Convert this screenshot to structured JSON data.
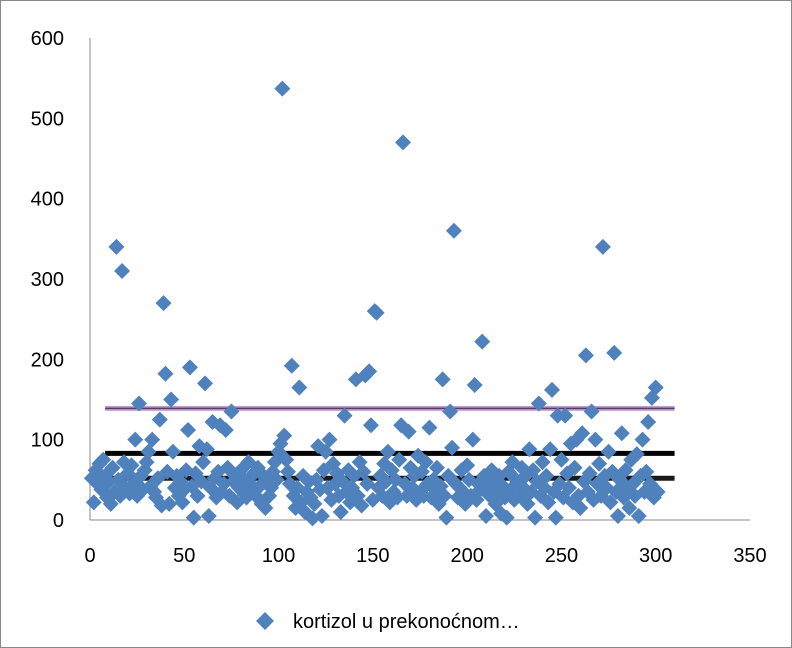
{
  "chart_data": {
    "type": "scatter",
    "title": "",
    "xlabel": "",
    "ylabel": "",
    "xlim": [
      0,
      350
    ],
    "ylim": [
      0,
      600
    ],
    "x_ticks": [
      0,
      50,
      100,
      150,
      200,
      250,
      300,
      350
    ],
    "y_ticks": [
      0,
      100,
      200,
      300,
      400,
      500,
      600
    ],
    "grid": false,
    "legend_position": "bottom",
    "reference_lines": [
      {
        "y": 139,
        "color": "#bf9fd0",
        "x_range": [
          8,
          310
        ]
      },
      {
        "y": 83,
        "color": "#000000",
        "x_range": [
          8,
          310
        ]
      },
      {
        "y": 52,
        "color": "#1a1a1a",
        "x_range": [
          8,
          310
        ]
      }
    ],
    "series": [
      {
        "name": "kortizol u prekonoćnom…",
        "color": "#4f81bd",
        "marker": "diamond",
        "points": [
          [
            1,
            52
          ],
          [
            2,
            22
          ],
          [
            3,
            62
          ],
          [
            4,
            45
          ],
          [
            5,
            70
          ],
          [
            6,
            38
          ],
          [
            7,
            75
          ],
          [
            8,
            55
          ],
          [
            9,
            28
          ],
          [
            10,
            48
          ],
          [
            11,
            20
          ],
          [
            12,
            65
          ],
          [
            13,
            35
          ],
          [
            14,
            340
          ],
          [
            15,
            50
          ],
          [
            16,
            30
          ],
          [
            17,
            310
          ],
          [
            18,
            72
          ],
          [
            19,
            40
          ],
          [
            20,
            58
          ],
          [
            21,
            33
          ],
          [
            22,
            68
          ],
          [
            23,
            45
          ],
          [
            24,
            100
          ],
          [
            25,
            30
          ],
          [
            26,
            145
          ],
          [
            27,
            55
          ],
          [
            28,
            38
          ],
          [
            29,
            62
          ],
          [
            30,
            72
          ],
          [
            31,
            85
          ],
          [
            32,
            42
          ],
          [
            33,
            100
          ],
          [
            34,
            35
          ],
          [
            35,
            28
          ],
          [
            36,
            52
          ],
          [
            37,
            125
          ],
          [
            38,
            18
          ],
          [
            39,
            270
          ],
          [
            40,
            182
          ],
          [
            41,
            60
          ],
          [
            42,
            20
          ],
          [
            43,
            150
          ],
          [
            44,
            85
          ],
          [
            45,
            40
          ],
          [
            46,
            55
          ],
          [
            47,
            30
          ],
          [
            48,
            48
          ],
          [
            49,
            22
          ],
          [
            50,
            38
          ],
          [
            51,
            62
          ],
          [
            52,
            112
          ],
          [
            53,
            190
          ],
          [
            54,
            42
          ],
          [
            55,
            3
          ],
          [
            56,
            58
          ],
          [
            57,
            30
          ],
          [
            58,
            92
          ],
          [
            59,
            48
          ],
          [
            60,
            72
          ],
          [
            61,
            170
          ],
          [
            62,
            88
          ],
          [
            63,
            5
          ],
          [
            64,
            40
          ],
          [
            65,
            122
          ],
          [
            66,
            52
          ],
          [
            67,
            28
          ],
          [
            68,
            60
          ],
          [
            69,
            118
          ],
          [
            70,
            35
          ],
          [
            71,
            45
          ],
          [
            72,
            112
          ],
          [
            73,
            65
          ],
          [
            74,
            30
          ],
          [
            75,
            135
          ],
          [
            76,
            48
          ],
          [
            77,
            55
          ],
          [
            78,
            22
          ],
          [
            79,
            40
          ],
          [
            80,
            62
          ],
          [
            81,
            35
          ],
          [
            82,
            50
          ],
          [
            83,
            28
          ],
          [
            84,
            72
          ],
          [
            85,
            45
          ],
          [
            86,
            38
          ],
          [
            87,
            58
          ],
          [
            88,
            30
          ],
          [
            89,
            65
          ],
          [
            90,
            42
          ],
          [
            91,
            20
          ],
          [
            92,
            55
          ],
          [
            93,
            15
          ],
          [
            94,
            48
          ],
          [
            95,
            30
          ],
          [
            96,
            40
          ],
          [
            97,
            60
          ],
          [
            98,
            72
          ],
          [
            99,
            50
          ],
          [
            100,
            85
          ],
          [
            101,
            95
          ],
          [
            102,
            537
          ],
          [
            103,
            105
          ],
          [
            104,
            75
          ],
          [
            105,
            60
          ],
          [
            106,
            45
          ],
          [
            107,
            192
          ],
          [
            108,
            30
          ],
          [
            109,
            15
          ],
          [
            110,
            40
          ],
          [
            111,
            165
          ],
          [
            112,
            22
          ],
          [
            113,
            55
          ],
          [
            114,
            10
          ],
          [
            115,
            35
          ],
          [
            116,
            48
          ],
          [
            117,
            28
          ],
          [
            118,
            2
          ],
          [
            119,
            20
          ],
          [
            120,
            50
          ],
          [
            121,
            92
          ],
          [
            122,
            38
          ],
          [
            123,
            5
          ],
          [
            124,
            62
          ],
          [
            125,
            85
          ],
          [
            126,
            40
          ],
          [
            127,
            100
          ],
          [
            128,
            25
          ],
          [
            129,
            70
          ],
          [
            130,
            45
          ],
          [
            131,
            58
          ],
          [
            132,
            30
          ],
          [
            133,
            10
          ],
          [
            134,
            48
          ],
          [
            135,
            130
          ],
          [
            136,
            35
          ],
          [
            137,
            62
          ],
          [
            138,
            22
          ],
          [
            139,
            40
          ],
          [
            140,
            55
          ],
          [
            141,
            175
          ],
          [
            142,
            30
          ],
          [
            143,
            72
          ],
          [
            144,
            18
          ],
          [
            145,
            60
          ],
          [
            146,
            180
          ],
          [
            147,
            45
          ],
          [
            148,
            185
          ],
          [
            149,
            118
          ],
          [
            150,
            25
          ],
          [
            151,
            260
          ],
          [
            152,
            258
          ],
          [
            153,
            40
          ],
          [
            154,
            55
          ],
          [
            155,
            30
          ],
          [
            156,
            70
          ],
          [
            157,
            48
          ],
          [
            158,
            85
          ],
          [
            159,
            22
          ],
          [
            160,
            62
          ],
          [
            161,
            35
          ],
          [
            162,
            50
          ],
          [
            163,
            28
          ],
          [
            164,
            75
          ],
          [
            165,
            118
          ],
          [
            166,
            470
          ],
          [
            167,
            45
          ],
          [
            168,
            30
          ],
          [
            169,
            110
          ],
          [
            170,
            65
          ],
          [
            171,
            40
          ],
          [
            172,
            55
          ],
          [
            173,
            25
          ],
          [
            174,
            80
          ],
          [
            175,
            35
          ],
          [
            176,
            60
          ],
          [
            177,
            30
          ],
          [
            178,
            72
          ],
          [
            179,
            45
          ],
          [
            180,
            115
          ],
          [
            181,
            28
          ],
          [
            182,
            50
          ],
          [
            183,
            38
          ],
          [
            184,
            65
          ],
          [
            185,
            20
          ],
          [
            186,
            42
          ],
          [
            187,
            175
          ],
          [
            188,
            30
          ],
          [
            189,
            3
          ],
          [
            190,
            55
          ],
          [
            191,
            135
          ],
          [
            192,
            90
          ],
          [
            193,
            360
          ],
          [
            194,
            45
          ],
          [
            195,
            28
          ],
          [
            196,
            40
          ],
          [
            197,
            62
          ],
          [
            198,
            35
          ],
          [
            199,
            20
          ],
          [
            200,
            68
          ],
          [
            201,
            50
          ],
          [
            202,
            30
          ],
          [
            203,
            100
          ],
          [
            204,
            168
          ],
          [
            205,
            25
          ],
          [
            206,
            45
          ],
          [
            207,
            38
          ],
          [
            208,
            222
          ],
          [
            209,
            55
          ],
          [
            210,
            5
          ],
          [
            211,
            40
          ],
          [
            212,
            30
          ],
          [
            213,
            62
          ],
          [
            214,
            48
          ],
          [
            215,
            20
          ],
          [
            216,
            35
          ],
          [
            217,
            55
          ],
          [
            218,
            8
          ],
          [
            219,
            42
          ],
          [
            220,
            28
          ],
          [
            221,
            3
          ],
          [
            222,
            60
          ],
          [
            223,
            38
          ],
          [
            224,
            72
          ],
          [
            225,
            25
          ],
          [
            226,
            50
          ],
          [
            227,
            45
          ],
          [
            228,
            30
          ],
          [
            229,
            65
          ],
          [
            230,
            40
          ],
          [
            231,
            55
          ],
          [
            232,
            20
          ],
          [
            233,
            88
          ],
          [
            234,
            35
          ],
          [
            235,
            62
          ],
          [
            236,
            3
          ],
          [
            237,
            48
          ],
          [
            238,
            145
          ],
          [
            239,
            30
          ],
          [
            240,
            72
          ],
          [
            241,
            40
          ],
          [
            242,
            55
          ],
          [
            243,
            22
          ],
          [
            244,
            88
          ],
          [
            245,
            162
          ],
          [
            246,
            35
          ],
          [
            247,
            3
          ],
          [
            248,
            130
          ],
          [
            249,
            45
          ],
          [
            250,
            75
          ],
          [
            251,
            28
          ],
          [
            252,
            130
          ],
          [
            253,
            58
          ],
          [
            254,
            40
          ],
          [
            255,
            95
          ],
          [
            256,
            22
          ],
          [
            257,
            65
          ],
          [
            258,
            100
          ],
          [
            259,
            30
          ],
          [
            260,
            15
          ],
          [
            261,
            108
          ],
          [
            262,
            48
          ],
          [
            263,
            205
          ],
          [
            264,
            35
          ],
          [
            265,
            58
          ],
          [
            266,
            135
          ],
          [
            267,
            25
          ],
          [
            268,
            100
          ],
          [
            269,
            45
          ],
          [
            270,
            70
          ],
          [
            271,
            30
          ],
          [
            272,
            340
          ],
          [
            273,
            55
          ],
          [
            274,
            40
          ],
          [
            275,
            85
          ],
          [
            276,
            22
          ],
          [
            277,
            60
          ],
          [
            278,
            208
          ],
          [
            279,
            35
          ],
          [
            280,
            5
          ],
          [
            281,
            50
          ],
          [
            282,
            108
          ],
          [
            283,
            28
          ],
          [
            284,
            62
          ],
          [
            285,
            40
          ],
          [
            286,
            15
          ],
          [
            287,
            75
          ],
          [
            288,
            45
          ],
          [
            289,
            30
          ],
          [
            290,
            82
          ],
          [
            291,
            5
          ],
          [
            292,
            55
          ],
          [
            293,
            100
          ],
          [
            294,
            35
          ],
          [
            295,
            60
          ],
          [
            296,
            122
          ],
          [
            297,
            45
          ],
          [
            298,
            152
          ],
          [
            299,
            28
          ],
          [
            300,
            165
          ],
          [
            301,
            35
          ]
        ]
      }
    ]
  }
}
